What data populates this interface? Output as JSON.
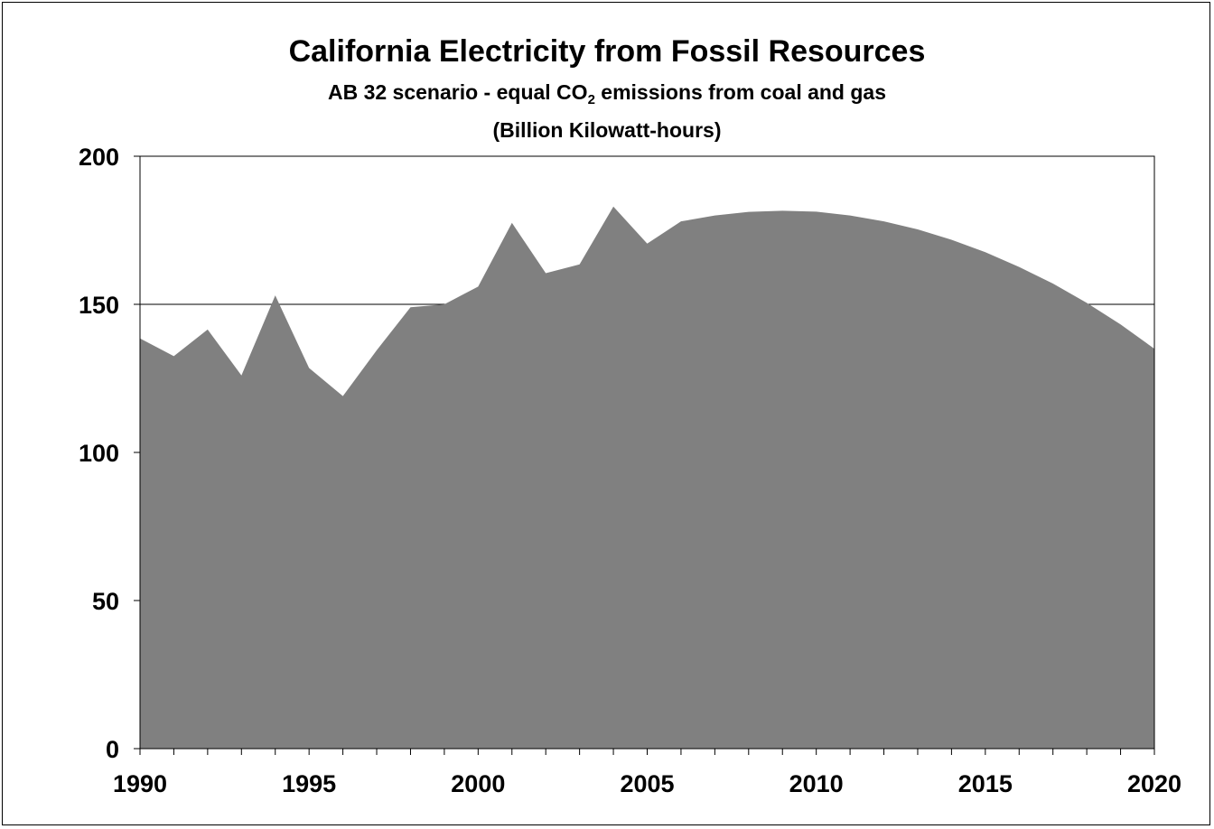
{
  "chart_data": {
    "type": "area",
    "title": "California Electricity from Fossil Resources",
    "subtitle_before": "AB 32 scenario - equal CO",
    "subtitle_sub": "2",
    "subtitle_after": " emissions from coal and gas",
    "units": "(Billion Kilowatt-hours)",
    "xlabel": "",
    "ylabel": "",
    "xlim": [
      1990,
      2020
    ],
    "ylim": [
      0,
      200
    ],
    "x_ticks": [
      1990,
      1995,
      2000,
      2005,
      2010,
      2015,
      2020
    ],
    "y_ticks": [
      0,
      50,
      100,
      150,
      200
    ],
    "grid": "horizontal",
    "legend": "none",
    "fill_color": "#808080",
    "x": [
      1990,
      1991,
      1992,
      1993,
      1994,
      1995,
      1996,
      1997,
      1998,
      1999,
      2000,
      2001,
      2002,
      2003,
      2004,
      2005,
      2006,
      2007,
      2008,
      2009,
      2010,
      2011,
      2012,
      2013,
      2014,
      2015,
      2016,
      2017,
      2018,
      2019,
      2020
    ],
    "values": [
      138.5,
      132.5,
      141.5,
      126,
      153,
      128.5,
      119,
      134.5,
      149,
      150,
      156,
      177.5,
      160.5,
      163.5,
      183,
      170.5,
      178,
      180,
      181.2,
      181.6,
      181.3,
      180,
      178,
      175.3,
      171.8,
      167.6,
      162.6,
      157,
      150.5,
      143.2,
      135
    ]
  }
}
